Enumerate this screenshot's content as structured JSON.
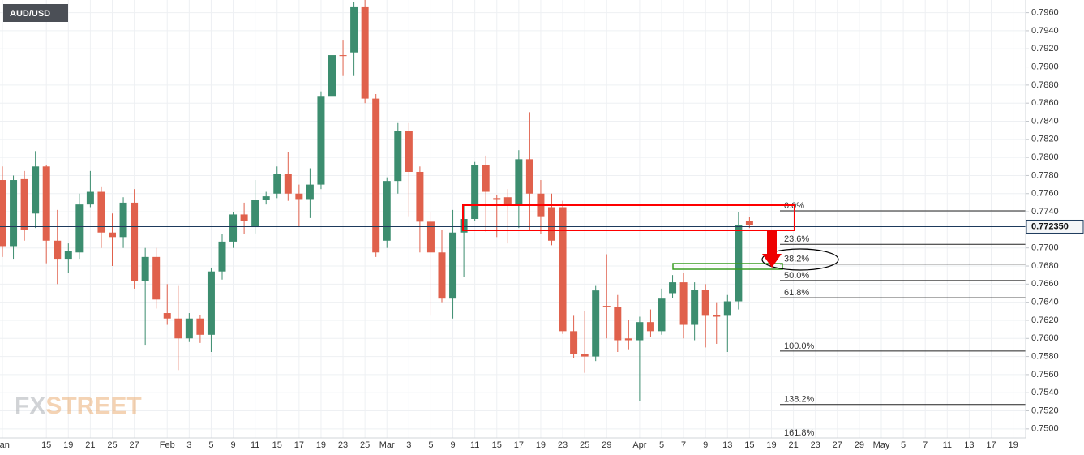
{
  "chart_data": {
    "type": "candlestick",
    "title": "AUD/USD",
    "watermark": {
      "left": "FX",
      "right": "STREET"
    },
    "up_color": "#3c8d6f",
    "down_color": "#e0614c",
    "grid": true,
    "ylim": [
      0.749,
      0.7974
    ],
    "yticks": [
      {
        "value": 0.75,
        "label": "0.7500"
      },
      {
        "value": 0.752,
        "label": "0.7520"
      },
      {
        "value": 0.754,
        "label": "0.7540"
      },
      {
        "value": 0.756,
        "label": "0.7560"
      },
      {
        "value": 0.758,
        "label": "0.7580"
      },
      {
        "value": 0.76,
        "label": "0.7600"
      },
      {
        "value": 0.762,
        "label": "0.7620"
      },
      {
        "value": 0.764,
        "label": "0.7640"
      },
      {
        "value": 0.766,
        "label": "0.7660"
      },
      {
        "value": 0.768,
        "label": "0.7680"
      },
      {
        "value": 0.77,
        "label": "0.7700"
      },
      {
        "value": 0.772,
        "label": "0.7720"
      },
      {
        "value": 0.774,
        "label": "0.7740"
      },
      {
        "value": 0.776,
        "label": "0.7760"
      },
      {
        "value": 0.778,
        "label": "0.7780"
      },
      {
        "value": 0.78,
        "label": "0.7800"
      },
      {
        "value": 0.782,
        "label": "0.7820"
      },
      {
        "value": 0.784,
        "label": "0.7840"
      },
      {
        "value": 0.786,
        "label": "0.7860"
      },
      {
        "value": 0.788,
        "label": "0.7880"
      },
      {
        "value": 0.79,
        "label": "0.7900"
      },
      {
        "value": 0.792,
        "label": "0.7920"
      },
      {
        "value": 0.794,
        "label": "0.7940"
      },
      {
        "value": 0.796,
        "label": "0.7960"
      }
    ],
    "last_price": {
      "value": 0.77235,
      "label": "0.772350"
    },
    "fib": [
      {
        "level": "0.0%",
        "price": 0.7741
      },
      {
        "level": "23.6%",
        "price": 0.7704
      },
      {
        "level": "38.2%",
        "price": 0.7682
      },
      {
        "level": "50.0%",
        "price": 0.7664
      },
      {
        "level": "61.8%",
        "price": 0.7645
      },
      {
        "level": "100.0%",
        "price": 0.7586
      },
      {
        "level": "138.2%",
        "price": 0.7527
      },
      {
        "level": "161.8%",
        "price": 0.749
      }
    ],
    "categories": [
      "Jan",
      null,
      null,
      null,
      "15",
      null,
      "19",
      null,
      "21",
      null,
      "25",
      null,
      "27",
      null,
      null,
      "Feb",
      null,
      "3",
      null,
      "5",
      null,
      "9",
      null,
      "11",
      null,
      "15",
      null,
      "17",
      null,
      "19",
      null,
      "23",
      null,
      "25",
      null,
      "Mar",
      null,
      "3",
      null,
      "5",
      null,
      "9",
      null,
      "11",
      null,
      "15",
      null,
      "17",
      null,
      "19",
      null,
      "23",
      null,
      "25",
      null,
      "29",
      null,
      null,
      "Apr",
      null,
      "5",
      null,
      "7",
      null,
      "9",
      null,
      "13",
      null,
      "15",
      null,
      "19",
      null,
      "21",
      null,
      "23",
      null,
      "27",
      null,
      "29",
      null,
      "May",
      null,
      "5",
      null,
      "7",
      null,
      "11",
      null,
      "13",
      null,
      "17",
      null,
      "19"
    ],
    "open": [
      0.7775,
      0.7702,
      0.7776,
      0.7738,
      0.779,
      0.7708,
      0.7688,
      0.7695,
      0.7748,
      0.7762,
      0.7717,
      0.7712,
      0.775,
      0.7663,
      0.769,
      0.7628,
      0.7622,
      0.76,
      0.7622,
      0.7604,
      0.7674,
      0.7707,
      0.7737,
      0.7723,
      0.7753,
      0.776,
      0.7782,
      0.776,
      0.7754,
      0.777,
      0.7868,
      0.7913,
      0.7916,
      0.7966,
      0.7865,
      0.7708,
      0.7774,
      0.7829,
      0.7784,
      0.7729,
      0.7695,
      0.7644,
      0.7717,
      0.7732,
      0.7792,
      0.7755,
      0.7756,
      0.7749,
      0.7798,
      0.776,
      0.7745,
      0.7745,
      0.7608,
      0.7583,
      0.758,
      0.7636,
      0.7635,
      0.76,
      0.7598,
      0.7618,
      0.7608,
      0.765,
      0.7662,
      0.7615,
      0.7654,
      0.7626,
      0.7625,
      0.7641,
      0.773,
      null,
      null,
      null,
      null,
      null,
      null,
      null,
      null,
      null,
      null,
      null,
      null,
      null,
      null,
      null,
      null,
      null,
      null,
      null,
      null,
      null,
      null,
      null,
      null
    ],
    "high": [
      0.779,
      0.778,
      0.7785,
      0.7807,
      0.7792,
      0.7742,
      0.7705,
      0.776,
      0.7785,
      0.7768,
      0.7738,
      0.7756,
      0.7765,
      0.77,
      0.77,
      0.766,
      0.7658,
      0.7628,
      0.7626,
      0.7678,
      0.7715,
      0.774,
      0.775,
      0.7775,
      0.7762,
      0.779,
      0.7806,
      0.777,
      0.7788,
      0.7873,
      0.7932,
      0.793,
      0.7972,
      0.7975,
      0.787,
      0.7778,
      0.7838,
      0.7838,
      0.779,
      0.774,
      0.772,
      0.7742,
      0.7748,
      0.7795,
      0.7802,
      0.7758,
      0.7765,
      0.7808,
      0.785,
      0.7775,
      0.776,
      0.7752,
      0.7625,
      0.763,
      0.7658,
      0.7693,
      0.7648,
      0.762,
      0.7624,
      0.7632,
      0.7655,
      0.767,
      0.7672,
      0.7662,
      0.766,
      0.764,
      0.7648,
      0.774,
      0.7734,
      null,
      null,
      null,
      null,
      null,
      null,
      null,
      null,
      null,
      null,
      null,
      null,
      null,
      null,
      null,
      null,
      null,
      null,
      null,
      null,
      null,
      null,
      null,
      null
    ],
    "low": [
      0.769,
      0.7688,
      0.7708,
      0.7722,
      0.7683,
      0.766,
      0.7672,
      0.7688,
      0.7745,
      0.77,
      0.768,
      0.77,
      0.7655,
      0.7593,
      0.7633,
      0.7615,
      0.7565,
      0.7596,
      0.7595,
      0.7585,
      0.7665,
      0.77,
      0.7715,
      0.7716,
      0.7748,
      0.7755,
      0.7752,
      0.7723,
      0.7733,
      0.7765,
      0.7853,
      0.789,
      0.789,
      0.786,
      0.769,
      0.77,
      0.776,
      0.7735,
      0.7695,
      0.7625,
      0.764,
      0.7622,
      0.7668,
      0.773,
      0.7718,
      0.7712,
      0.7705,
      0.7722,
      0.772,
      0.7715,
      0.7703,
      0.7605,
      0.7578,
      0.7562,
      0.7575,
      0.76,
      0.7585,
      0.7588,
      0.7531,
      0.7602,
      0.7604,
      0.7645,
      0.76,
      0.7598,
      0.759,
      0.7594,
      0.7585,
      0.7632,
      0.7722,
      null,
      null,
      null,
      null,
      null,
      null,
      null,
      null,
      null,
      null,
      null,
      null,
      null,
      null,
      null,
      null,
      null,
      null,
      null,
      null,
      null,
      null,
      null,
      null
    ],
    "close": [
      0.7702,
      0.7775,
      0.772,
      0.779,
      0.7708,
      0.7688,
      0.7697,
      0.7748,
      0.7762,
      0.7717,
      0.7712,
      0.775,
      0.7663,
      0.769,
      0.7643,
      0.7622,
      0.76,
      0.7622,
      0.7604,
      0.7674,
      0.7707,
      0.7737,
      0.773,
      0.7753,
      0.7757,
      0.7782,
      0.776,
      0.7754,
      0.777,
      0.7868,
      0.7913,
      0.7912,
      0.7966,
      0.7865,
      0.7695,
      0.7774,
      0.7829,
      0.7784,
      0.7729,
      0.7695,
      0.7644,
      0.7717,
      0.7732,
      0.7792,
      0.7762,
      0.7754,
      0.7749,
      0.7798,
      0.776,
      0.7735,
      0.7708,
      0.7608,
      0.7583,
      0.758,
      0.7653,
      0.7635,
      0.7598,
      0.7598,
      0.7618,
      0.7608,
      0.7644,
      0.7662,
      0.7615,
      0.7654,
      0.7625,
      0.7624,
      0.7641,
      0.7725,
      0.7725,
      null,
      null,
      null,
      null,
      null,
      null,
      null,
      null,
      null,
      null,
      null,
      null,
      null,
      null,
      null,
      null,
      null,
      null,
      null,
      null,
      null,
      null,
      null,
      null
    ]
  }
}
